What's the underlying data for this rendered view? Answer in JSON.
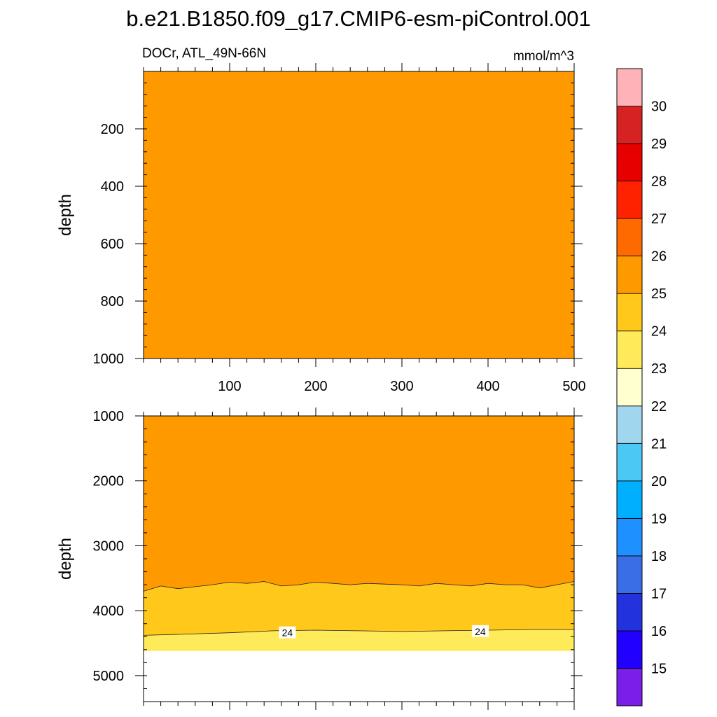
{
  "title": "b.e21.B1850.f09_g17.CMIP6-esm-piControl.001",
  "subtitle_left": "DOCr, ATL_49N-66N",
  "subtitle_right": "mmol/m^3",
  "chart_data": {
    "type": "contour",
    "title": "b.e21.B1850.f09_g17.CMIP6-esm-piControl.001",
    "variable": "DOCr",
    "region": "ATL_49N-66N",
    "units": "mmol/m^3",
    "colorbar": {
      "levels": [
        15,
        16,
        17,
        18,
        19,
        20,
        21,
        22,
        23,
        24,
        25,
        26,
        27,
        28,
        29,
        30
      ],
      "colors": [
        "#7b1fe8",
        "#2200ff",
        "#2233dd",
        "#3a6ee6",
        "#1e90ff",
        "#00b0ff",
        "#4cc8f5",
        "#a0d6ee",
        "#ffffd0",
        "#ffea5a",
        "#ffc81a",
        "#ff9900",
        "#ff6a00",
        "#ff2200",
        "#e60000",
        "#d62222",
        "#ffb3b8"
      ]
    },
    "panels": [
      {
        "name": "upper",
        "ylabel": "depth",
        "ylim": [
          0,
          1000
        ],
        "y_ticks": [
          200,
          400,
          600,
          800,
          1000
        ],
        "xlim": [
          0,
          500
        ],
        "x_ticks": [
          100,
          200,
          300,
          400,
          500
        ],
        "fill_level_range": [
          25,
          26
        ]
      },
      {
        "name": "lower",
        "ylabel": "depth",
        "ylim": [
          1000,
          5400
        ],
        "y_ticks": [
          1000,
          2000,
          3000,
          4000,
          5000
        ],
        "xlim": [
          0,
          500
        ],
        "contour_25_depth_x": [
          0,
          20,
          40,
          60,
          80,
          100,
          120,
          140,
          160,
          180,
          200,
          220,
          240,
          260,
          280,
          300,
          320,
          340,
          360,
          380,
          400,
          420,
          440,
          460,
          480,
          500
        ],
        "contour_25_depth": [
          3700,
          3620,
          3660,
          3630,
          3600,
          3560,
          3580,
          3550,
          3620,
          3600,
          3560,
          3580,
          3600,
          3580,
          3590,
          3600,
          3620,
          3580,
          3600,
          3620,
          3580,
          3600,
          3600,
          3650,
          3600,
          3550
        ],
        "contour_24_depth_x": [
          0,
          50,
          100,
          150,
          200,
          250,
          300,
          350,
          400,
          450,
          500
        ],
        "contour_24_depth": [
          4380,
          4360,
          4340,
          4310,
          4300,
          4310,
          4320,
          4310,
          4300,
          4290,
          4290
        ],
        "contour_labels": [
          {
            "text": "24",
            "x": 167,
            "depth": 4340
          },
          {
            "text": "24",
            "x": 391,
            "depth": 4320
          }
        ],
        "data_bottom_depth": 4620
      }
    ]
  }
}
